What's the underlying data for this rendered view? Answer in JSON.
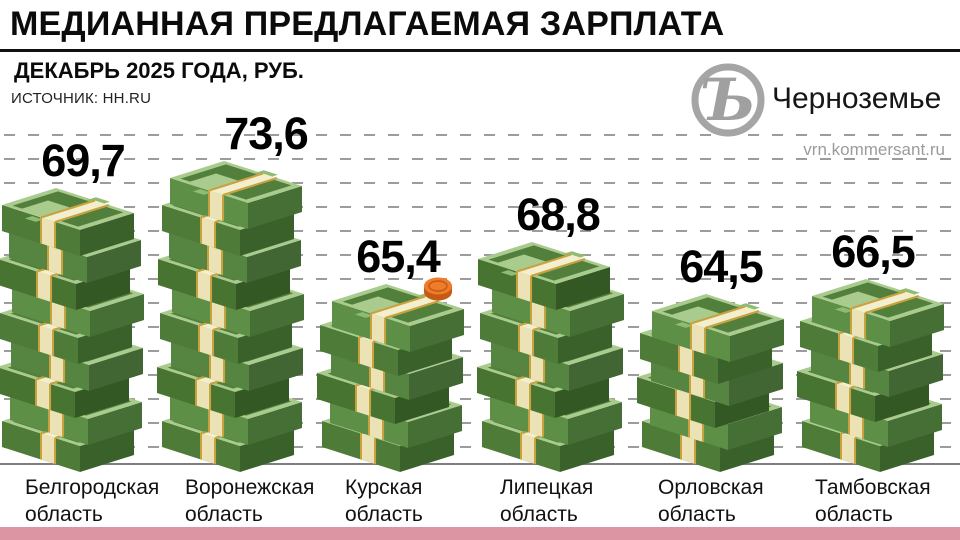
{
  "header": {
    "title": "МЕДИАННАЯ ПРЕДЛАГАЕМАЯ ЗАРПЛАТА",
    "subtitle": "ДЕКАБРЬ 2025 ГОДА, РУБ.",
    "source": "ИСТОЧНИК: HH.RU"
  },
  "brand": {
    "logo_glyph": "Ъ",
    "name": "Черноземье",
    "url": "vrn.kommersant.ru"
  },
  "chart_data": {
    "type": "bar",
    "style": "isometric-money-stacks",
    "title": "МЕДИАННАЯ ПРЕДЛАГАЕМАЯ ЗАРПЛАТА",
    "subtitle": "ДЕКАБРЬ 2025 ГОДА, РУБ.",
    "source": "ИСТОЧНИК: HH.RU",
    "grid": "horizontal-dashed",
    "categories": [
      "Белгородская область",
      "Воронежская область",
      "Курская область",
      "Липецкая область",
      "Орловская область",
      "Тамбовская область"
    ],
    "category_lines": [
      [
        "Белгородская",
        "область"
      ],
      [
        "Воронежская",
        "область"
      ],
      [
        "Курская",
        "область"
      ],
      [
        "Липецкая",
        "область"
      ],
      [
        "Орловская",
        "область"
      ],
      [
        "Тамбовская",
        "область"
      ]
    ],
    "values": [
      69.7,
      73.6,
      65.4,
      68.8,
      64.5,
      66.5
    ],
    "value_labels": [
      "69,7",
      "73,6",
      "65,4",
      "68,8",
      "64,5",
      "66,5"
    ],
    "decorations": {
      "coin_on_category": "Курская область",
      "coin_index": 2
    },
    "layout": {
      "bundles": [
        9,
        10,
        6,
        7,
        6,
        6
      ],
      "overlap": [
        27,
        27,
        24,
        27,
        22,
        25
      ],
      "label_dx": [
        3,
        26,
        -2,
        -2,
        1,
        -7
      ],
      "cat_dx": [
        25,
        25,
        25,
        20,
        18,
        15
      ]
    }
  },
  "colors": {
    "background": "#ffffff",
    "grid": "#9c9c9c",
    "baseline": "#7e7e7e",
    "footer_pink": "#dc96a3",
    "text": "#0b0b0b",
    "logo_gray": "#a5a5a5",
    "bundle_top": "#a9cb8e",
    "bundle_top_inner": "#52803c",
    "bundle_patch": "#8fbc73",
    "bundle_fronts": [
      "#4e7b38",
      "#5d8f47",
      "#477431",
      "#568541"
    ],
    "bundle_rights": [
      "#3a612a",
      "#466f36",
      "#345823",
      "#416634"
    ],
    "band_top": "#f3eecd",
    "band_front": "#ebe3b6",
    "band_gold": "#c9a23e",
    "coin_top": "#ee7d2b",
    "coin_side": "#c65a12"
  }
}
